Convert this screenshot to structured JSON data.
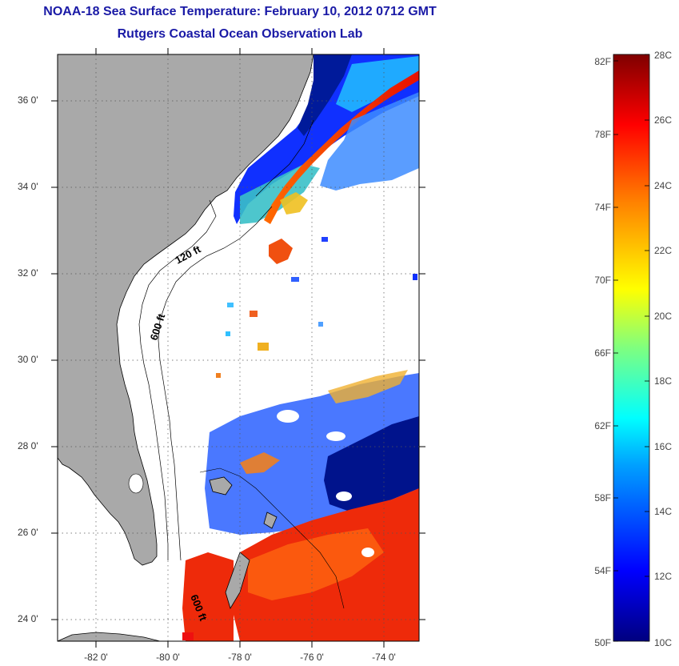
{
  "header": {
    "title": "NOAA-18 Sea Surface Temperature:  February 10, 2012 0712 GMT",
    "subtitle": "Rutgers Coastal Ocean Observation Lab"
  },
  "map": {
    "lat_labels": [
      "36 0'",
      "34 0'",
      "32 0'",
      "30 0'",
      "28 0'",
      "26 0'",
      "24 0'"
    ],
    "lon_labels": [
      "-82 0'",
      "-80 0'",
      "-78 0'",
      "-76 0'",
      "-74 0'"
    ],
    "contours": {
      "shelf_120": "120 ft",
      "shelf_600": "600 ft",
      "shelf_600_south": "600 ft"
    },
    "colors": {
      "land": "#a9a9a9",
      "ocean": "#ffffff",
      "coast": "#000000"
    }
  },
  "colorbar": {
    "fahrenheit": [
      "82F",
      "78F",
      "74F",
      "70F",
      "66F",
      "62F",
      "58F",
      "54F",
      "50F"
    ],
    "celsius": [
      "28C",
      "26C",
      "24C",
      "22C",
      "20C",
      "18C",
      "16C",
      "14C",
      "12C",
      "10C"
    ],
    "range_c": [
      10,
      28
    ],
    "range_f": [
      50,
      82
    ]
  }
}
